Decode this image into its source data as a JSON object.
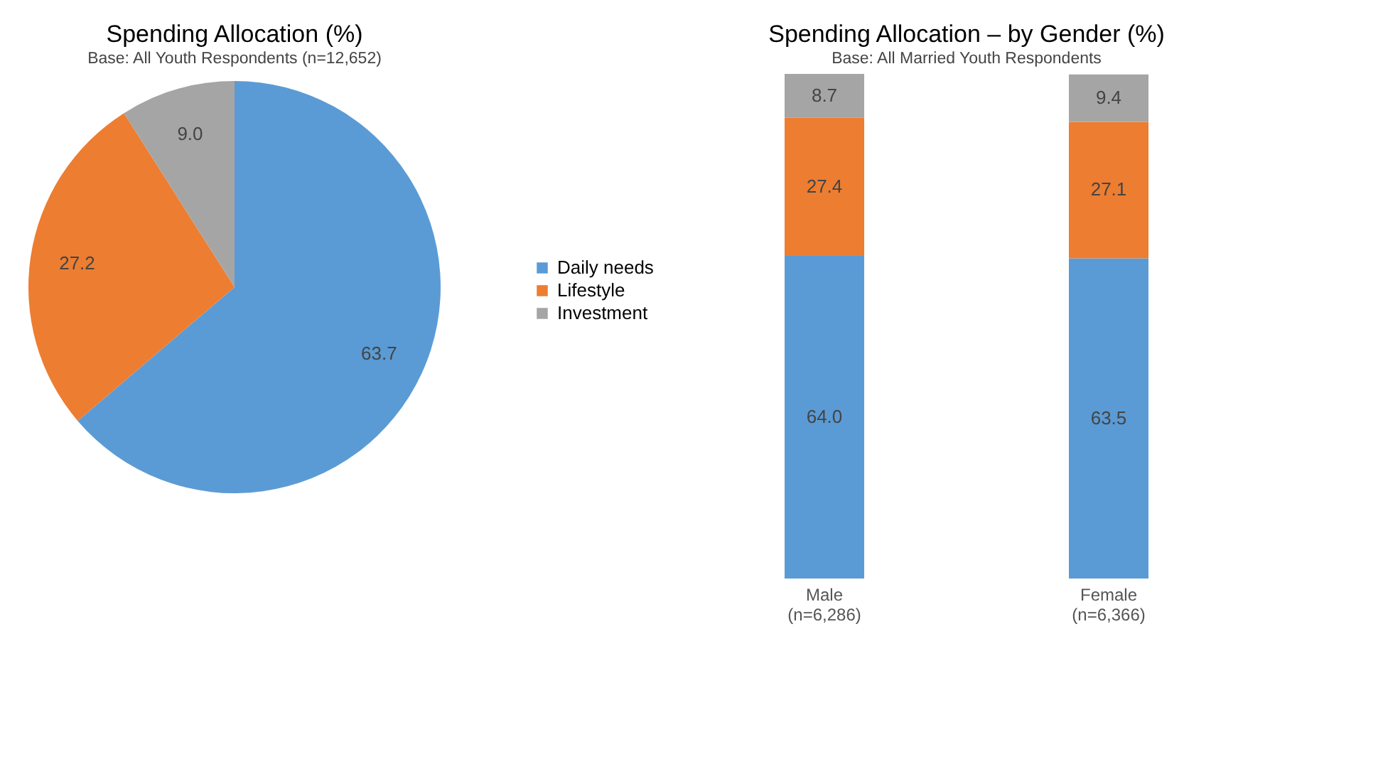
{
  "chart_data": [
    {
      "type": "pie",
      "title": "Spending Allocation (%)",
      "subtitle": "Base: All Youth Respondents (n=12,652)",
      "categories": [
        "Daily needs",
        "Lifestyle",
        "Investment"
      ],
      "values": [
        63.7,
        27.2,
        9.0
      ],
      "colors": [
        "#5b9bd5",
        "#ed7d31",
        "#a5a5a5"
      ],
      "value_labels": [
        "63.7",
        "27.2",
        "9.0"
      ],
      "legend": "right"
    },
    {
      "type": "bar",
      "title": "Spending Allocation – by Gender (%)",
      "subtitle": "Base: All Married Youth Respondents",
      "categories": [
        "Male\n(n=6,286)",
        "Female\n(n=6,366)"
      ],
      "stacked": true,
      "series": [
        {
          "color": "#5b9bd5",
          "values": [
            64.0,
            63.5
          ],
          "value_labels": [
            "64.0",
            "63.5"
          ]
        },
        {
          "color": "#ed7d31",
          "values": [
            27.4,
            27.1
          ],
          "value_labels": [
            "27.4",
            "27.1"
          ]
        },
        {
          "color": "#a5a5a5",
          "values": [
            8.7,
            9.4
          ],
          "value_labels": [
            "8.7",
            "9.4"
          ]
        }
      ]
    }
  ]
}
